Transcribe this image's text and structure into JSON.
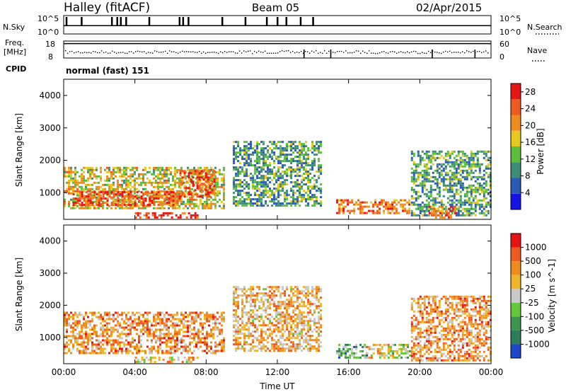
{
  "header": {
    "station": "Halley (fitACF)",
    "beam": "Beam 05",
    "date": "02/Apr/2015",
    "cpid_label": "CPID",
    "cpid_value": "normal (fast) 151"
  },
  "panels": {
    "nsky": {
      "left_label": "N.Sky",
      "right_label": "N.Search",
      "left_ticks": [
        "10^5",
        "10^0"
      ],
      "right_ticks": [
        "10^5",
        "10^0"
      ],
      "baseline_fraction": 0.55,
      "spike_times_h": [
        0.15,
        1.0,
        2.7,
        3.0,
        3.2,
        3.5,
        4.8,
        6.5,
        6.7,
        7.0,
        8.9,
        10.2,
        11.4,
        12.0,
        12.5,
        13.3,
        14.0
      ]
    },
    "freq": {
      "left_label": "Freq.",
      "left_unit": "[MHz]",
      "right_label": "Nave",
      "left_ticks": [
        "18",
        "8"
      ],
      "right_ticks": [
        "60",
        "0"
      ],
      "freq_level_fraction": 0.15,
      "nave_spike_times_h": [
        13.5,
        15.0,
        20.7,
        23.1
      ]
    }
  },
  "chart_data": [
    {
      "type": "heatmap",
      "title": "Power",
      "xlabel": "Time UT",
      "ylabel": "Slant Range [km]",
      "x_ticks": [
        "00:00",
        "04:00",
        "08:00",
        "12:00",
        "16:00",
        "20:00",
        "00:00"
      ],
      "xlim_hours": [
        0,
        24
      ],
      "y_ticks": [
        1000,
        2000,
        3000,
        4000
      ],
      "ylim": [
        180,
        4500
      ],
      "colorbar": {
        "label": "Power [dB]",
        "ticks": [
          4,
          8,
          12,
          16,
          20,
          24,
          28
        ],
        "range": [
          0,
          30
        ],
        "colors": [
          "#1414e6",
          "#2a5ab4",
          "#3c8c78",
          "#5abe3c",
          "#e6c81e",
          "#f08c1e",
          "#ef5a1e",
          "#e61414"
        ]
      },
      "regions": [
        {
          "t": [
            0.0,
            9.0
          ],
          "r": [
            500,
            1800
          ],
          "level": 0.55
        },
        {
          "t": [
            0.5,
            6.5
          ],
          "r": [
            650,
            1050
          ],
          "level": 0.85
        },
        {
          "t": [
            6.5,
            8.5
          ],
          "r": [
            900,
            1700
          ],
          "level": 0.8
        },
        {
          "t": [
            4.0,
            7.5
          ],
          "r": [
            250,
            400
          ],
          "level": 0.9
        },
        {
          "t": [
            9.5,
            14.5
          ],
          "r": [
            600,
            2600
          ],
          "level": 0.35
        },
        {
          "t": [
            15.3,
            19.4
          ],
          "r": [
            350,
            800
          ],
          "level": 0.75
        },
        {
          "t": [
            19.5,
            24.0
          ],
          "r": [
            300,
            2300
          ],
          "level": 0.35
        },
        {
          "t": [
            20.5,
            22.0
          ],
          "r": [
            250,
            600
          ],
          "level": 0.8
        }
      ]
    },
    {
      "type": "heatmap",
      "title": "Velocity",
      "xlabel": "Time UT",
      "ylabel": "Slant Range [km]",
      "x_ticks": [
        "00:00",
        "04:00",
        "08:00",
        "12:00",
        "16:00",
        "20:00",
        "00:00"
      ],
      "xlim_hours": [
        0,
        24
      ],
      "y_ticks": [
        1000,
        2000,
        3000,
        4000
      ],
      "ylim": [
        180,
        4500
      ],
      "colorbar": {
        "label": "Velocity [m s^-1]",
        "ticks": [
          1000,
          500,
          100,
          25,
          -25,
          -100,
          -500,
          -1000
        ],
        "colors": [
          "#1e46c8",
          "#2e7d5a",
          "#3c9650",
          "#64c83c",
          "#c8c8c8",
          "#f0b428",
          "#f08c1e",
          "#ef5a1e",
          "#e61414"
        ]
      },
      "regions": [
        {
          "t": [
            0.0,
            9.0
          ],
          "r": [
            500,
            1800
          ],
          "level": 0.7
        },
        {
          "t": [
            4.0,
            7.5
          ],
          "r": [
            250,
            400
          ],
          "level": 0.6
        },
        {
          "t": [
            9.5,
            14.5
          ],
          "r": [
            600,
            2600
          ],
          "level": 0.65
        },
        {
          "t": [
            15.3,
            17.0
          ],
          "r": [
            350,
            800
          ],
          "level": 0.3
        },
        {
          "t": [
            17.0,
            18.2
          ],
          "r": [
            350,
            800
          ],
          "level": 0.62
        },
        {
          "t": [
            18.2,
            19.4
          ],
          "r": [
            350,
            800
          ],
          "level": 0.45
        },
        {
          "t": [
            19.5,
            24.0
          ],
          "r": [
            300,
            2300
          ],
          "level": 0.7
        }
      ]
    }
  ]
}
